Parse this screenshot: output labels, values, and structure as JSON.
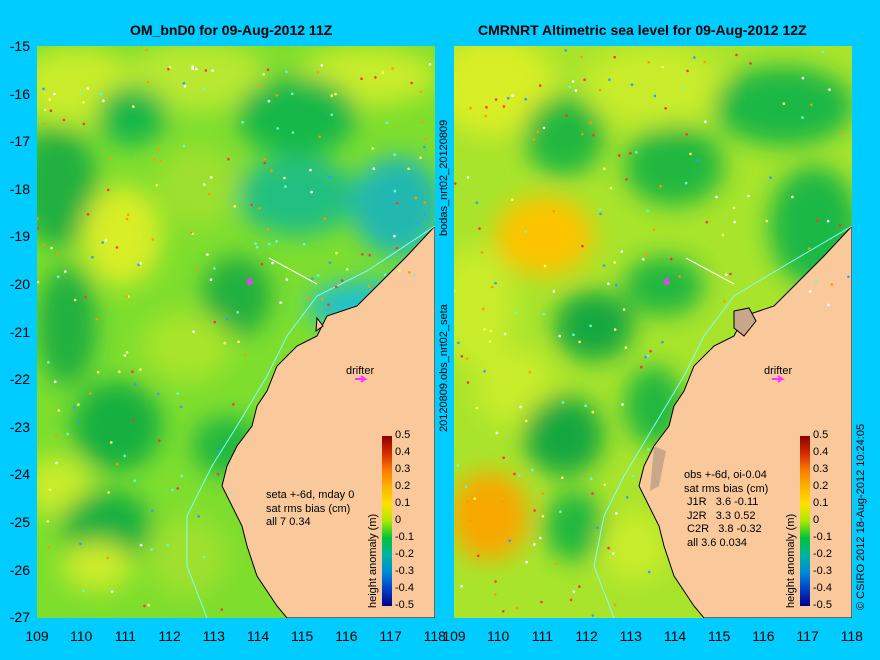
{
  "left": {
    "title": "OM_bnD0 for 09-Aug-2012 11Z",
    "stats": "seta +-6d, mday 0\nsat rms bias (cm)\nall 7 0.34",
    "drifter_label": "drifter"
  },
  "right": {
    "title": "CMRNRT Altimetric sea level  for 09-Aug-2012 12Z",
    "stats": "obs +-6d, oi-0.04\nsat rms bias (cm)\n J1R   3.6 -0.11\n J2R   3.3 0.52\n C2R   3.8 -0.32\n all 3.6 0.034",
    "drifter_label": "drifter"
  },
  "axes": {
    "lat_ticks": [
      "-15",
      "-16",
      "-17",
      "-18",
      "-19",
      "-20",
      "-21",
      "-22",
      "-23",
      "-24",
      "-25",
      "-26",
      "-27"
    ],
    "lon_ticks": [
      "109",
      "110",
      "111",
      "112",
      "113",
      "114",
      "115",
      "116",
      "117",
      "118"
    ]
  },
  "colorbar": {
    "title": "height anomaly (m)",
    "ticks": [
      "0.5",
      "0.4",
      "0.3",
      "0.2",
      "0.1",
      "0",
      "-0.1",
      "-0.2",
      "-0.3",
      "-0.4",
      "-0.5"
    ]
  },
  "side_text": {
    "top": "bodas_nrt02_20120809",
    "bottom": "20120809.obs_nrt02_seta",
    "credit": "© CSIRO 2012  18-Aug-2012 10:24:05"
  },
  "colors": {
    "background": "#00ccff",
    "land": "#f9c99c",
    "drifter_marker": "#ff33ff"
  }
}
